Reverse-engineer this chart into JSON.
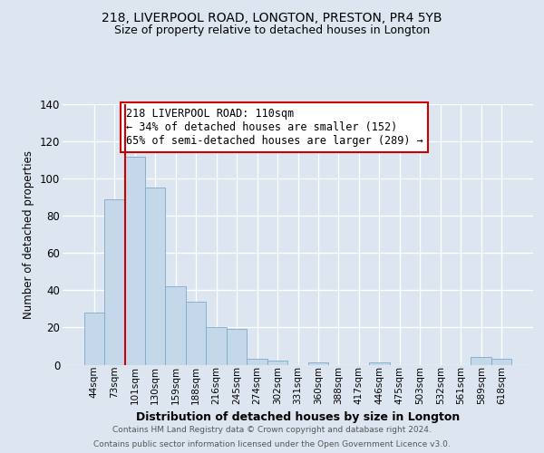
{
  "title1": "218, LIVERPOOL ROAD, LONGTON, PRESTON, PR4 5YB",
  "title2": "Size of property relative to detached houses in Longton",
  "xlabel": "Distribution of detached houses by size in Longton",
  "ylabel": "Number of detached properties",
  "bar_labels": [
    "44sqm",
    "73sqm",
    "101sqm",
    "130sqm",
    "159sqm",
    "188sqm",
    "216sqm",
    "245sqm",
    "274sqm",
    "302sqm",
    "331sqm",
    "360sqm",
    "388sqm",
    "417sqm",
    "446sqm",
    "475sqm",
    "503sqm",
    "532sqm",
    "561sqm",
    "589sqm",
    "618sqm"
  ],
  "bar_values": [
    28,
    89,
    112,
    95,
    42,
    34,
    20,
    19,
    3,
    2,
    0,
    1,
    0,
    0,
    1,
    0,
    0,
    0,
    0,
    4,
    3
  ],
  "bar_color": "#c5d8ea",
  "bar_edge_color": "#7aaac8",
  "vline_index": 2,
  "vline_color": "#cc0000",
  "ylim": [
    0,
    140
  ],
  "yticks": [
    0,
    20,
    40,
    60,
    80,
    100,
    120,
    140
  ],
  "annotation_line1": "218 LIVERPOOL ROAD: 110sqm",
  "annotation_line2": "← 34% of detached houses are smaller (152)",
  "annotation_line3": "65% of semi-detached houses are larger (289) →",
  "annotation_box_facecolor": "#ffffff",
  "annotation_box_edgecolor": "#cc0000",
  "footer1": "Contains HM Land Registry data © Crown copyright and database right 2024.",
  "footer2": "Contains public sector information licensed under the Open Government Licence v3.0.",
  "background_color": "#dde6f0",
  "grid_color": "#ffffff"
}
